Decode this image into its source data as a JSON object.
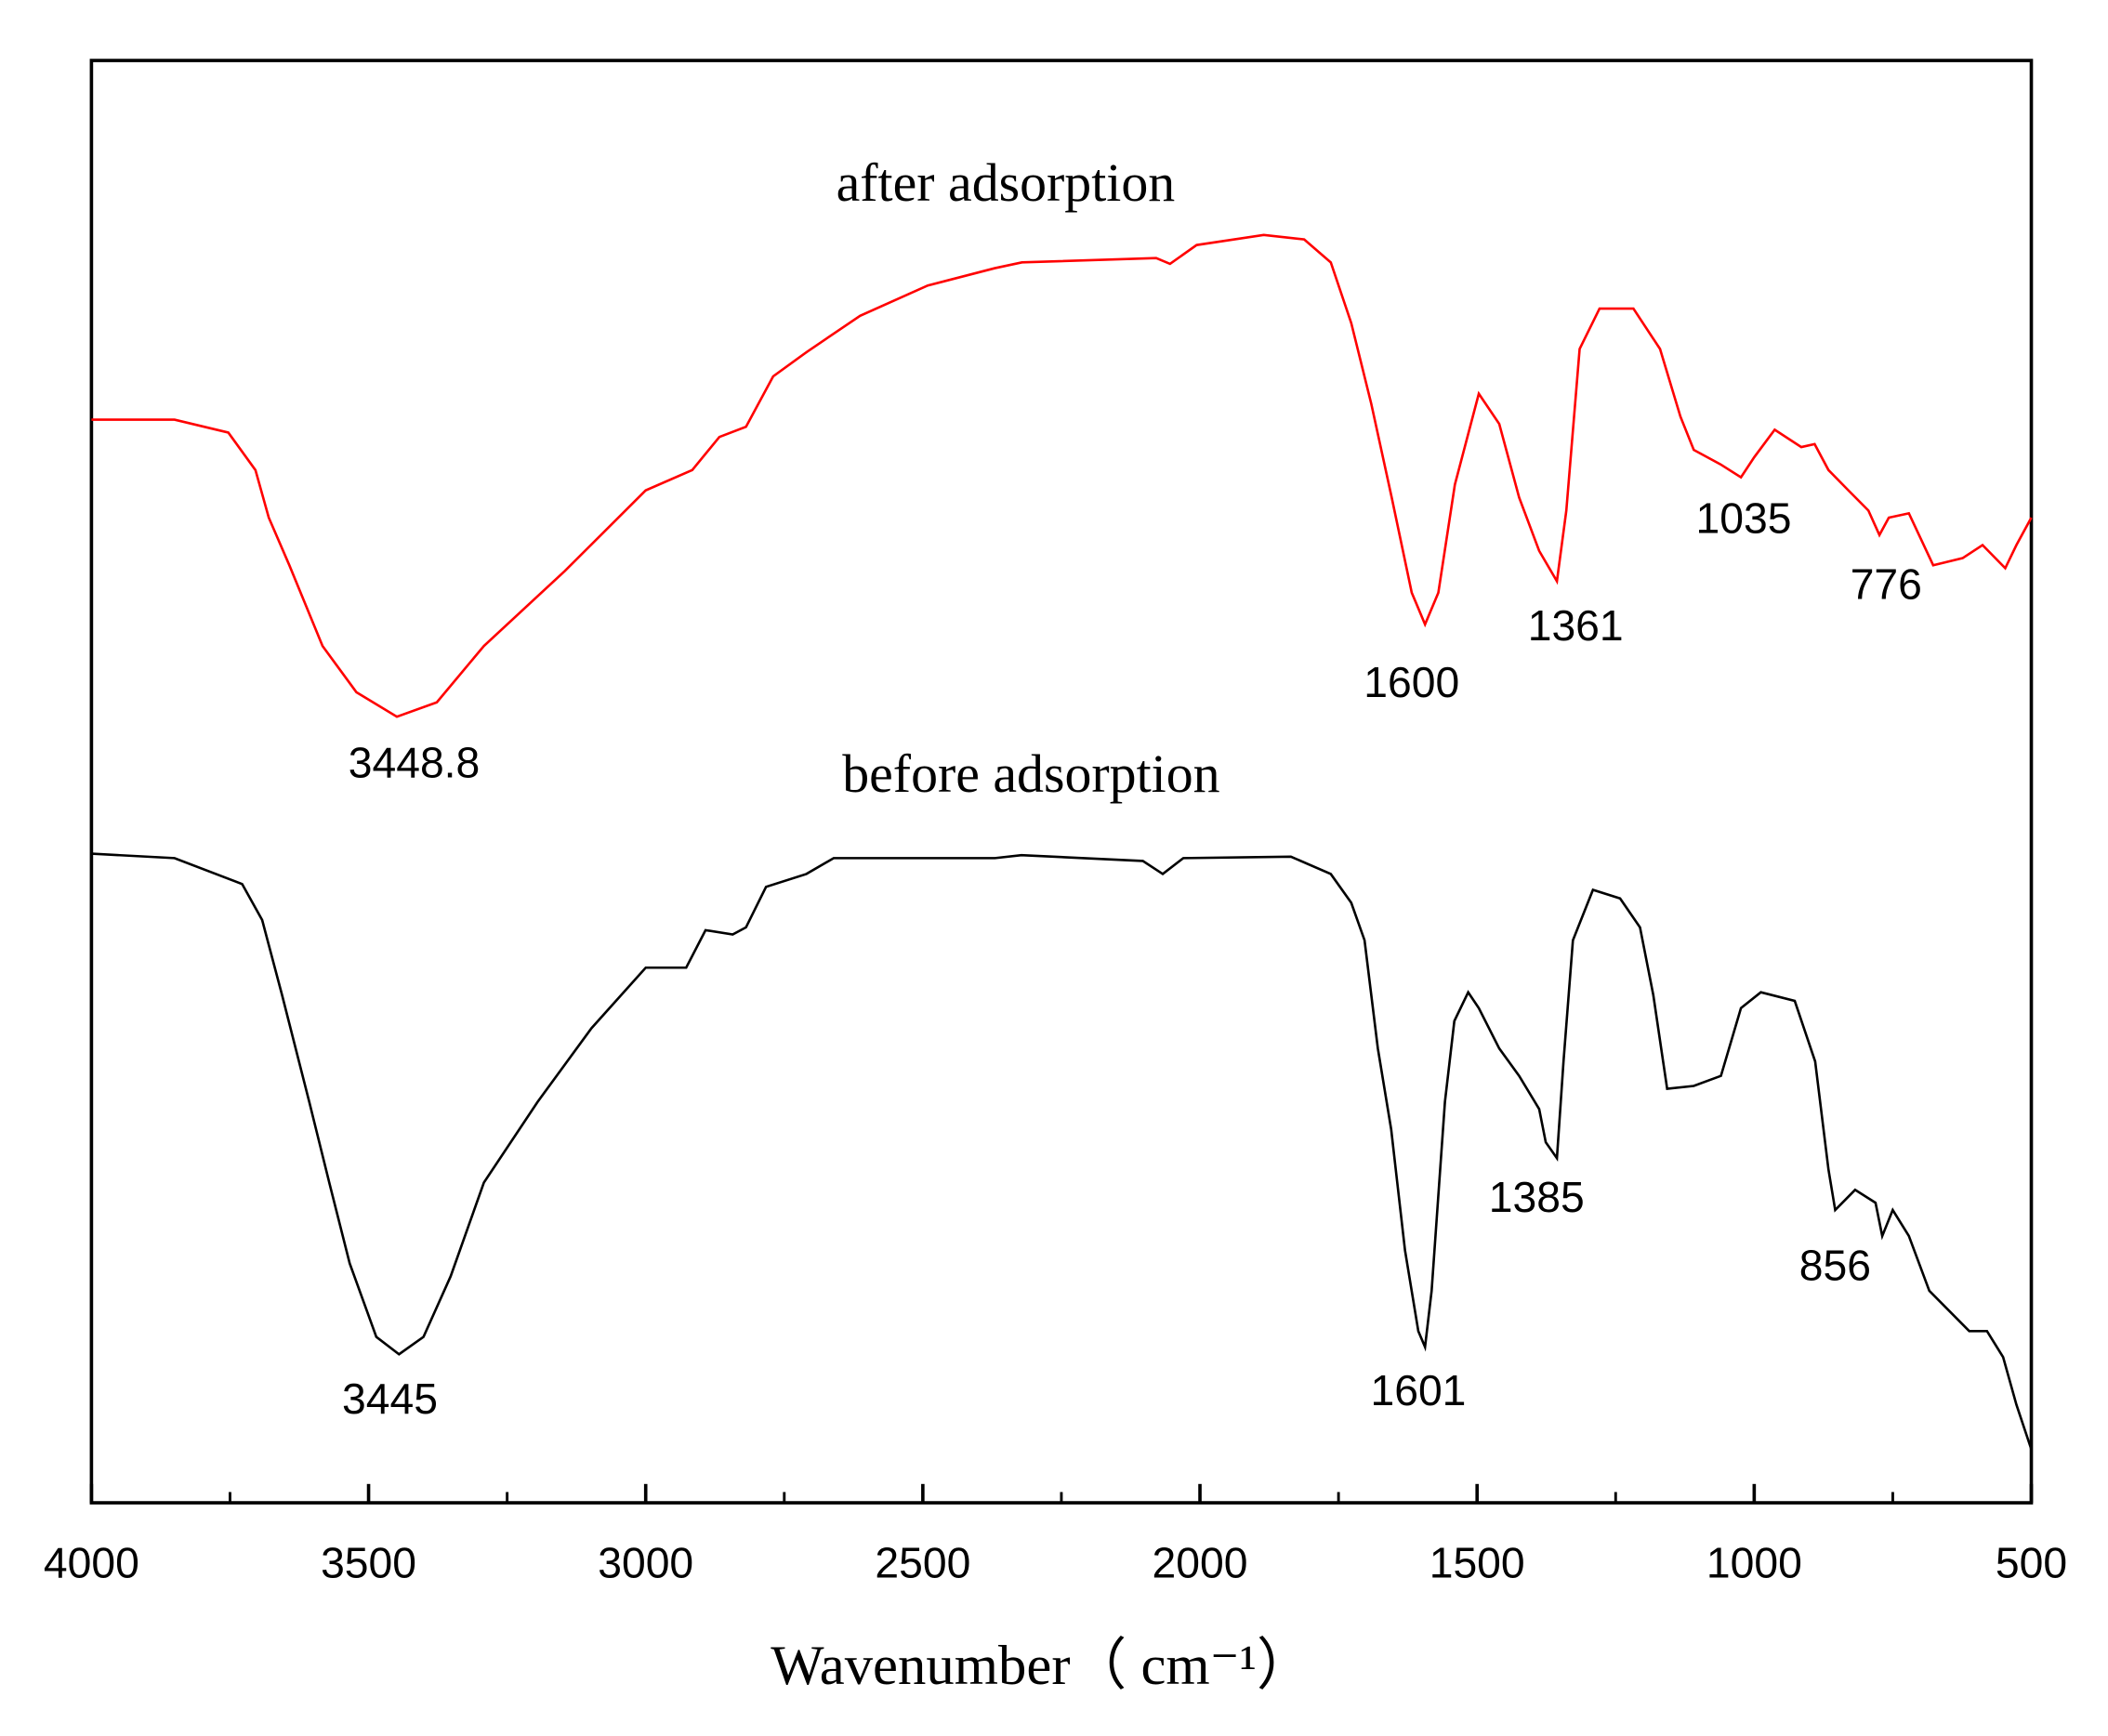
{
  "chart_data": {
    "type": "line",
    "x_label": "Wavenumber（ cm⁻¹）",
    "xlim": [
      4000,
      500
    ],
    "xticks": [
      4000,
      3500,
      3000,
      2500,
      2000,
      1500,
      1000,
      500
    ],
    "xminorticks": [
      3750,
      3250,
      2750,
      2250,
      1750,
      1250,
      750
    ],
    "ylim": [
      0,
      100
    ],
    "series": [
      {
        "name": "after adsorption",
        "color": "#ff0000",
        "x": [
          4000,
          3850,
          3753,
          3704,
          3680,
          3643,
          3583,
          3522,
          3449,
          3377,
          3292,
          3146,
          3000,
          2916,
          2867,
          2819,
          2770,
          2709,
          2613,
          2491,
          2370,
          2321,
          2079,
          2054,
          2006,
          1885,
          1812,
          1764,
          1727,
          1691,
          1654,
          1618,
          1594,
          1570,
          1540,
          1497,
          1460,
          1424,
          1388,
          1356,
          1339,
          1315,
          1279,
          1218,
          1170,
          1133,
          1109,
          1061,
          1024,
          1000,
          963,
          915,
          891,
          866,
          830,
          794,
          774,
          757,
          721,
          677,
          624,
          588,
          547,
          527,
          500
        ],
        "values": [
          75.1,
          75.1,
          74.2,
          71.6,
          68.3,
          65.0,
          59.4,
          56.2,
          54.5,
          55.5,
          59.4,
          64.6,
          70.2,
          71.6,
          73.9,
          74.6,
          78.1,
          79.8,
          82.3,
          84.4,
          85.6,
          86.0,
          86.3,
          85.9,
          87.2,
          87.9,
          87.6,
          86.0,
          81.8,
          76.2,
          69.7,
          63.1,
          60.9,
          63.1,
          70.6,
          76.9,
          74.8,
          69.7,
          66.0,
          63.9,
          68.8,
          80.0,
          82.8,
          82.8,
          80.0,
          75.3,
          73.0,
          72.0,
          71.1,
          72.5,
          74.4,
          73.2,
          73.4,
          71.6,
          70.2,
          68.8,
          67.1,
          68.3,
          68.6,
          65.0,
          65.5,
          66.4,
          64.8,
          66.4,
          68.3
        ]
      },
      {
        "name": "before adsorption",
        "color": "#000000",
        "x": [
          4000,
          3850,
          3728,
          3692,
          3656,
          3607,
          3571,
          3534,
          3486,
          3445,
          3401,
          3352,
          3292,
          3195,
          3098,
          3000,
          2927,
          2892,
          2843,
          2819,
          2783,
          2710,
          2661,
          2370,
          2322,
          2103,
          2067,
          2030,
          1836,
          1764,
          1727,
          1703,
          1679,
          1655,
          1630,
          1606,
          1594,
          1582,
          1558,
          1541,
          1516,
          1497,
          1460,
          1424,
          1388,
          1376,
          1356,
          1344,
          1327,
          1291,
          1242,
          1206,
          1182,
          1157,
          1109,
          1060,
          1024,
          988,
          927,
          890,
          866,
          854,
          818,
          781,
          769,
          750,
          721,
          684,
          648,
          612,
          580,
          551,
          527,
          500
        ],
        "values": [
          45.0,
          44.7,
          42.9,
          40.4,
          35.2,
          27.8,
          22.2,
          16.6,
          11.5,
          10.3,
          11.5,
          15.7,
          22.2,
          27.8,
          32.9,
          37.1,
          37.1,
          39.7,
          39.4,
          39.9,
          42.7,
          43.6,
          44.7,
          44.7,
          44.9,
          44.5,
          43.6,
          44.7,
          44.8,
          43.6,
          41.6,
          39.0,
          31.5,
          25.9,
          17.5,
          11.9,
          10.8,
          14.7,
          27.8,
          33.4,
          35.4,
          34.3,
          31.5,
          29.6,
          27.3,
          25.0,
          23.9,
          30.6,
          39.0,
          42.5,
          41.9,
          39.9,
          35.2,
          28.7,
          28.9,
          29.6,
          34.3,
          35.4,
          34.8,
          30.6,
          23.1,
          20.3,
          21.7,
          20.8,
          18.5,
          20.3,
          18.5,
          14.7,
          13.3,
          11.9,
          11.9,
          10.1,
          6.8,
          3.7
        ]
      }
    ],
    "annotations": [
      "3448.8",
      "1600",
      "1361",
      "1035",
      "776",
      "3445",
      "1601",
      "1385",
      "856"
    ]
  }
}
